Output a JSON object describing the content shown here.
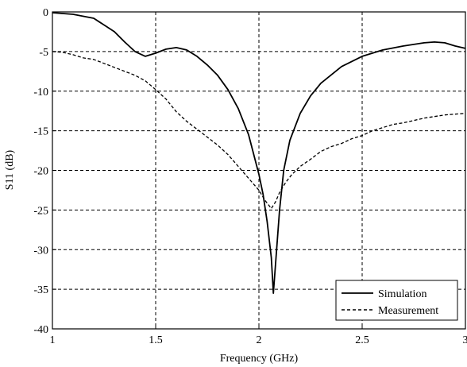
{
  "chart_data": {
    "type": "line",
    "title": "",
    "xlabel": "Frequency (GHz)",
    "ylabel": "S11 (dB)",
    "xlim": [
      1,
      3
    ],
    "ylim": [
      -40,
      0
    ],
    "xticks": [
      "1",
      "1.5",
      "2",
      "2.5",
      "3"
    ],
    "yticks": [
      "0",
      "-5",
      "-10",
      "-15",
      "-20",
      "-25",
      "-30",
      "-35",
      "-40"
    ],
    "grid": "dashed",
    "legend_position": "bottom-right",
    "series": [
      {
        "name": "Simulation",
        "style": "solid",
        "x": [
          1.0,
          1.1,
          1.2,
          1.3,
          1.35,
          1.4,
          1.45,
          1.5,
          1.55,
          1.6,
          1.65,
          1.7,
          1.75,
          1.8,
          1.85,
          1.9,
          1.95,
          2.0,
          2.02,
          2.04,
          2.06,
          2.07,
          2.08,
          2.1,
          2.12,
          2.15,
          2.2,
          2.25,
          2.3,
          2.4,
          2.5,
          2.6,
          2.7,
          2.8,
          2.85,
          2.9,
          2.95,
          3.0
        ],
        "values": [
          -0.1,
          -0.3,
          -0.8,
          -2.5,
          -3.8,
          -5.0,
          -5.6,
          -5.2,
          -4.7,
          -4.5,
          -4.8,
          -5.6,
          -6.7,
          -8.0,
          -9.8,
          -12.2,
          -15.5,
          -20.5,
          -23.0,
          -26.5,
          -31.0,
          -35.5,
          -32.0,
          -25.0,
          -20.0,
          -16.2,
          -12.8,
          -10.6,
          -9.0,
          -6.9,
          -5.6,
          -4.8,
          -4.3,
          -3.9,
          -3.8,
          -3.9,
          -4.3,
          -4.6
        ]
      },
      {
        "name": "Measurement",
        "style": "dashed",
        "x": [
          1.0,
          1.05,
          1.1,
          1.15,
          1.2,
          1.25,
          1.3,
          1.35,
          1.4,
          1.45,
          1.5,
          1.55,
          1.6,
          1.65,
          1.7,
          1.75,
          1.8,
          1.85,
          1.9,
          1.95,
          2.0,
          2.03,
          2.06,
          2.08,
          2.1,
          2.13,
          2.16,
          2.2,
          2.25,
          2.3,
          2.35,
          2.4,
          2.45,
          2.5,
          2.55,
          2.6,
          2.65,
          2.7,
          2.75,
          2.8,
          2.85,
          2.9,
          2.95,
          3.0
        ],
        "values": [
          -5.0,
          -5.1,
          -5.4,
          -5.8,
          -6.0,
          -6.5,
          -7.0,
          -7.5,
          -8.0,
          -8.7,
          -9.8,
          -11.0,
          -12.6,
          -13.8,
          -14.8,
          -15.8,
          -16.8,
          -18.0,
          -19.5,
          -21.0,
          -22.5,
          -23.8,
          -24.8,
          -24.0,
          -22.8,
          -21.5,
          -20.5,
          -19.5,
          -18.6,
          -17.6,
          -17.0,
          -16.6,
          -16.0,
          -15.6,
          -15.0,
          -14.6,
          -14.2,
          -14.0,
          -13.7,
          -13.4,
          -13.2,
          -13.0,
          -12.9,
          -12.8
        ]
      }
    ]
  }
}
